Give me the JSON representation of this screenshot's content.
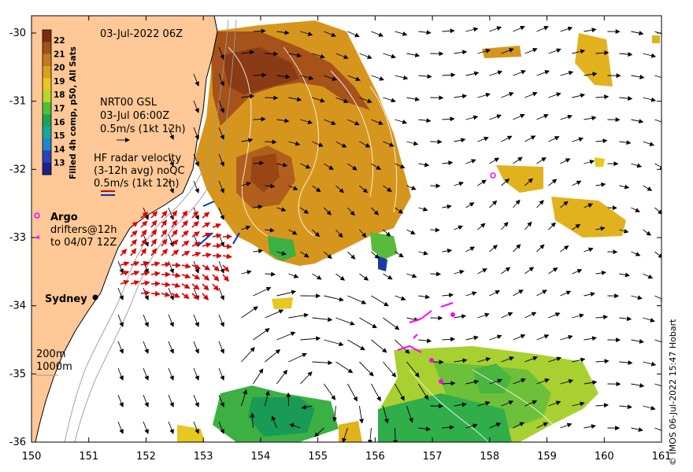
{
  "map": {
    "title": "03-Jul-2022 06Z",
    "colorbar_title": "Filled 4h comp, p50, All Sats",
    "colorbar_ticks": [
      "22",
      "21",
      "20",
      "19",
      "18",
      "17",
      "16",
      "15",
      "14",
      "13"
    ],
    "colorbar_colors": [
      "#7a2e10",
      "#a0521a",
      "#c27a1c",
      "#d9a21c",
      "#e6c81f",
      "#b6d62a",
      "#4fbf3a",
      "#19a35a",
      "#16a9a0",
      "#1f86c8",
      "#2645b0",
      "#1a1f8a"
    ],
    "nrt_legend": [
      "NRT00 GSL",
      "03-Jul 06:00Z",
      "0.5m/s (1kt 12h)"
    ],
    "hf_legend": [
      "HF radar velocity",
      "(3-12h avg) noQC",
      "0.5m/s (1kt 12h)"
    ],
    "argo_label": "Argo",
    "drifter_legend": [
      "drifters@12h",
      "to 04/07 12Z"
    ],
    "city_label": "Sydney",
    "depth_labels": [
      "200m",
      "1000m"
    ],
    "x_ticks": [
      "150",
      "151",
      "152",
      "153",
      "154",
      "155",
      "156",
      "157",
      "158",
      "159",
      "160",
      "161"
    ],
    "y_ticks": [
      "-30",
      "-31",
      "-32",
      "-33",
      "-34",
      "-35",
      "-36"
    ],
    "credit": "© IMOS 06-Jul-2022 15:47 Hobart",
    "colors": {
      "land": "#ffc896",
      "sst_warm": "#e0a020",
      "sst_cool": "#3cb043",
      "hf_radar": "#dd0000",
      "argo": "#ff00ff"
    }
  }
}
